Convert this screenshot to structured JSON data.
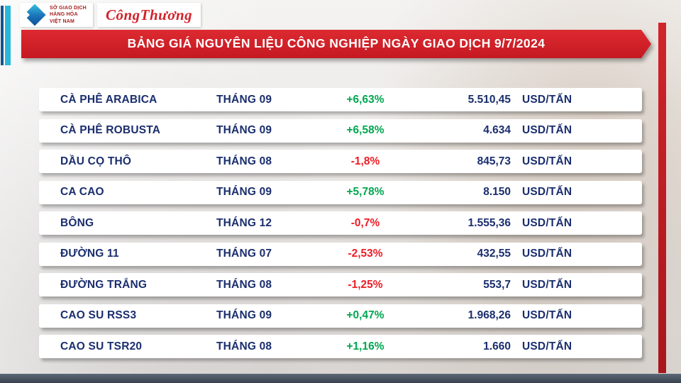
{
  "logos": {
    "mxv": {
      "org_lines": [
        "SỞ GIAO DỊCH",
        "HÀNG HÓA",
        "VIỆT NAM"
      ]
    },
    "congthuong": {
      "name": "CôngThương"
    }
  },
  "header": {
    "title": "BẢNG GIÁ NGUYÊN LIỆU CÔNG NGHIỆP NGÀY GIAO DỊCH 9/7/2024"
  },
  "table": {
    "rows": [
      {
        "name": "CÀ PHÊ ARABICA",
        "month": "THÁNG 09",
        "change": "+6,63%",
        "trend": "up",
        "value": "5.510,45",
        "unit": "USD/TẤN"
      },
      {
        "name": "CÀ PHÊ ROBUSTA",
        "month": "THÁNG 09",
        "change": "+6,58%",
        "trend": "up",
        "value": "4.634",
        "unit": "USD/TẤN"
      },
      {
        "name": "DẦU CỌ THÔ",
        "month": "THÁNG 08",
        "change": "-1,8%",
        "trend": "down",
        "value": "845,73",
        "unit": "USD/TẤN"
      },
      {
        "name": "CA CAO",
        "month": "THÁNG 09",
        "change": "+5,78%",
        "trend": "up",
        "value": "8.150",
        "unit": "USD/TẤN"
      },
      {
        "name": "BÔNG",
        "month": "THÁNG 12",
        "change": "-0,7%",
        "trend": "down",
        "value": "1.555,36",
        "unit": "USD/TẤN"
      },
      {
        "name": "ĐƯỜNG 11",
        "month": "THÁNG 07",
        "change": "-2,53%",
        "trend": "down",
        "value": "432,55",
        "unit": "USD/TẤN"
      },
      {
        "name": "ĐƯỜNG TRẮNG",
        "month": "THÁNG 08",
        "change": "-1,25%",
        "trend": "down",
        "value": "553,7",
        "unit": "USD/TẤN"
      },
      {
        "name": "CAO SU RSS3",
        "month": "THÁNG 09",
        "change": "+0,47%",
        "trend": "up",
        "value": "1.968,26",
        "unit": "USD/TẤN"
      },
      {
        "name": "CAO SU TSR20",
        "month": "THÁNG 08",
        "change": "+1,16%",
        "trend": "up",
        "value": "1.660",
        "unit": "USD/TẤN"
      }
    ]
  },
  "colors": {
    "banner_red": "#c41820",
    "text_navy": "#1a2e6e",
    "trend_up_green": "#00a64f",
    "trend_down_red": "#ed1c24",
    "accent_cyan": "#2ab7d9"
  }
}
